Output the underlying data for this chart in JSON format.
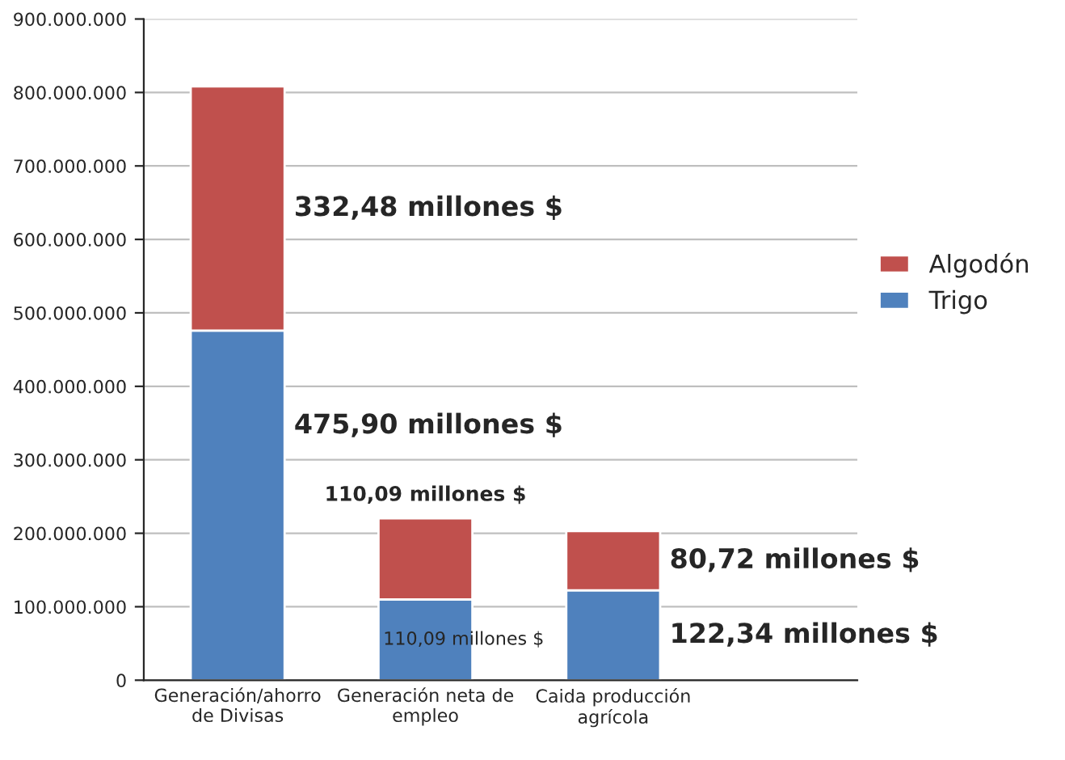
{
  "chart_data": {
    "type": "bar",
    "stacked": true,
    "categories": [
      "Generación/ahorro\nde Divisas",
      "Generación neta de\nempleo",
      "Caida producción\nagrícola"
    ],
    "series": [
      {
        "name": "Trigo",
        "color": "#4f81bd",
        "values": [
          475900000,
          110090000,
          122340000
        ]
      },
      {
        "name": "Algodón",
        "color": "#c0504d",
        "values": [
          332480000,
          110090000,
          80720000
        ]
      }
    ],
    "annotations": [
      "332,48 millones $",
      "475,90 millones $",
      "110,09 millones $",
      "110,09 millones $",
      "80,72 millones $",
      "122,34 millones $"
    ],
    "ylim": [
      0,
      900000000
    ],
    "yticks": [
      {
        "value": 0,
        "label": "0"
      },
      {
        "value": 100000000,
        "label": "100.000.000"
      },
      {
        "value": 200000000,
        "label": "200.000.000"
      },
      {
        "value": 300000000,
        "label": "300.000.000"
      },
      {
        "value": 400000000,
        "label": "400.000.000"
      },
      {
        "value": 500000000,
        "label": "500.000.000"
      },
      {
        "value": 600000000,
        "label": "600.000.000"
      },
      {
        "value": 700000000,
        "label": "700.000.000"
      },
      {
        "value": 800000000,
        "label": "800.000.000"
      },
      {
        "value": 900000000,
        "label": "900.000.000"
      }
    ],
    "grid": "y",
    "legend": "right"
  }
}
